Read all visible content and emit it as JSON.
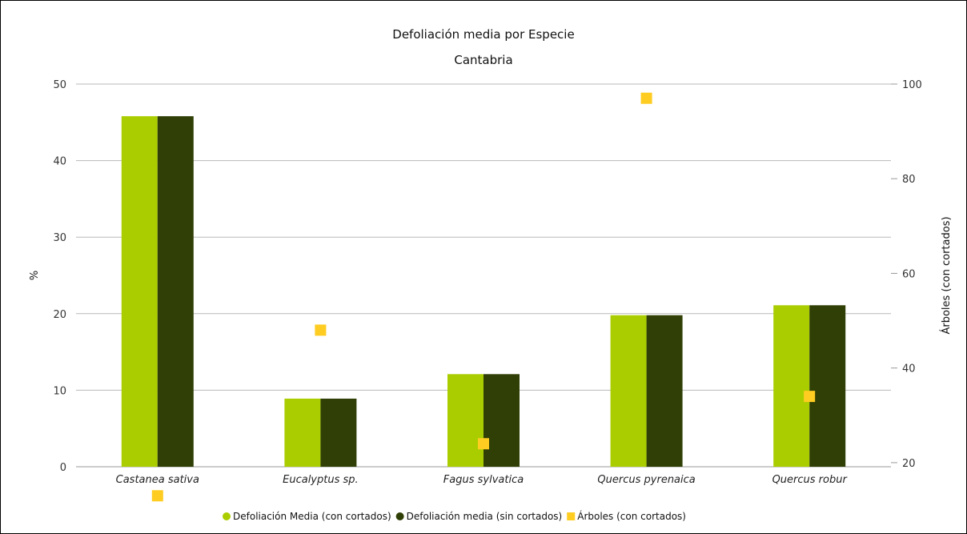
{
  "chart_data": {
    "type": "bar",
    "title": "Defoliación media por Especie",
    "subtitle": "Cantabria",
    "categories": [
      "Castanea sativa",
      "Eucalyptus sp.",
      "Fagus sylvatica",
      "Quercus pyrenaica",
      "Quercus robur"
    ],
    "series": [
      {
        "name": "Defoliación Media (con cortados)",
        "type": "bar",
        "axis": "left",
        "color": "#aacd00",
        "values": [
          45.8,
          8.9,
          12.1,
          19.8,
          21.1
        ]
      },
      {
        "name": "Defoliación media (sin cortados)",
        "type": "bar",
        "axis": "left",
        "color": "#2f3f05",
        "values": [
          45.8,
          8.9,
          12.1,
          19.8,
          21.1
        ]
      },
      {
        "name": "Árboles (con cortados)",
        "type": "scatter",
        "axis": "right",
        "color": "#ffcc22",
        "values": [
          13,
          48,
          24,
          97,
          34
        ]
      }
    ],
    "ylabel": "%",
    "ylim": [
      0,
      50
    ],
    "yticks": [
      "0",
      "10",
      "20",
      "30",
      "40",
      "50"
    ],
    "y2label": "Árboles (con cortados)",
    "y2lim": [
      10,
      100
    ],
    "y2ticks": [
      "20",
      "40",
      "60",
      "80",
      "100"
    ],
    "grid": true,
    "legend_position": "bottom"
  }
}
